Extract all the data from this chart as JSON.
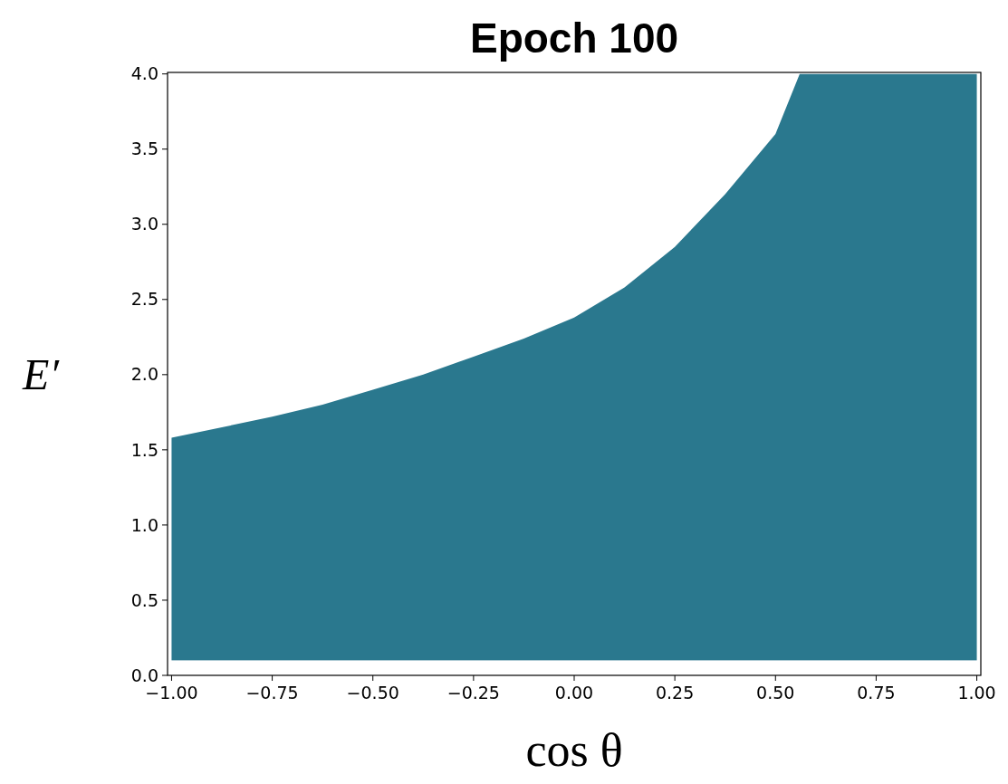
{
  "chart_data": {
    "type": "area",
    "title": "Epoch 100",
    "xlabel": "cos θ",
    "ylabel": "E′",
    "x": [
      -1,
      -0.875,
      -0.75,
      -0.625,
      -0.5,
      -0.375,
      -0.25,
      -0.125,
      0,
      0.125,
      0.25,
      0.375,
      0.5,
      0.56,
      0.75,
      1
    ],
    "series": [
      {
        "color": "#2a788e",
        "values": [
          1.58,
          1.65,
          1.72,
          1.8,
          1.9,
          2.0,
          2.12,
          2.24,
          2.38,
          2.58,
          2.85,
          3.2,
          3.6,
          4.0,
          4.0,
          4.0
        ]
      }
    ],
    "bands": [
      {
        "axis": "y",
        "from": 0,
        "to": 0.1,
        "color": "#ffffff"
      }
    ],
    "xlim": [
      -1.01,
      1.01
    ],
    "ylim": [
      0,
      4.01
    ],
    "xticks": [
      {
        "value": -1,
        "label": "−1.00"
      },
      {
        "value": -0.75,
        "label": "−0.75"
      },
      {
        "value": -0.5,
        "label": "−0.50"
      },
      {
        "value": -0.25,
        "label": "−0.25"
      },
      {
        "value": 0,
        "label": "0.00"
      },
      {
        "value": 0.25,
        "label": "0.25"
      },
      {
        "value": 0.5,
        "label": "0.50"
      },
      {
        "value": 0.75,
        "label": "0.75"
      },
      {
        "value": 1,
        "label": "1.00"
      }
    ],
    "yticks": [
      {
        "value": 0,
        "label": "0.0"
      },
      {
        "value": 0.5,
        "label": "0.5"
      },
      {
        "value": 1,
        "label": "1.0"
      },
      {
        "value": 1.5,
        "label": "1.5"
      },
      {
        "value": 2,
        "label": "2.0"
      },
      {
        "value": 2.5,
        "label": "2.5"
      },
      {
        "value": 3,
        "label": "3.0"
      },
      {
        "value": 3.5,
        "label": "3.5"
      },
      {
        "value": 4,
        "label": "4.0"
      }
    ],
    "grid": false
  }
}
